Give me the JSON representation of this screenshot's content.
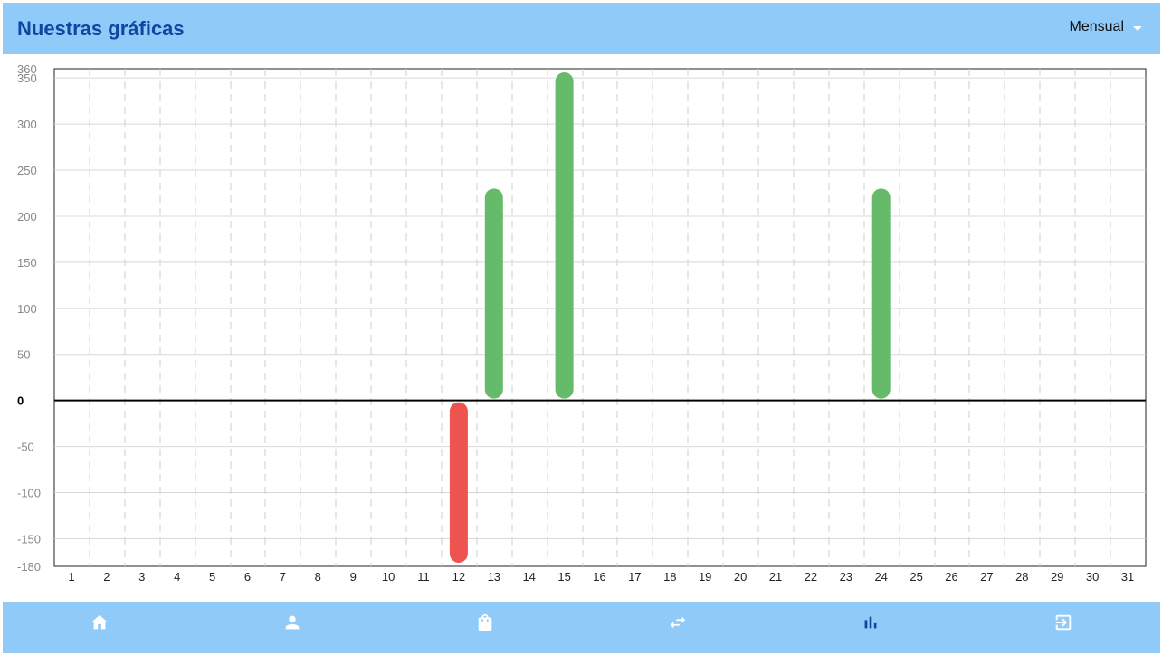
{
  "header": {
    "title": "Nuestras gráficas",
    "period_selector": "Mensual"
  },
  "colors": {
    "header_bg": "#90caf9",
    "title": "#0d47a1",
    "positive": "#66bb6a",
    "negative": "#ef5350",
    "nav_icon": "#ffffff",
    "nav_icon_active": "#0d47a1"
  },
  "nav": {
    "items": [
      {
        "icon": "home-icon",
        "active": false
      },
      {
        "icon": "person-icon",
        "active": false
      },
      {
        "icon": "shopping-bag-icon",
        "active": false
      },
      {
        "icon": "swap-horiz-icon",
        "active": false
      },
      {
        "icon": "bar-chart-icon",
        "active": true
      },
      {
        "icon": "logout-icon",
        "active": false
      }
    ]
  },
  "chart_data": {
    "type": "bar",
    "categories": [
      "1",
      "2",
      "3",
      "4",
      "5",
      "6",
      "7",
      "8",
      "9",
      "10",
      "11",
      "12",
      "13",
      "14",
      "15",
      "16",
      "17",
      "18",
      "19",
      "20",
      "21",
      "22",
      "23",
      "24",
      "25",
      "26",
      "27",
      "28",
      "29",
      "30",
      "31"
    ],
    "values": [
      0,
      0,
      0,
      0,
      0,
      0,
      0,
      0,
      0,
      0,
      0,
      -178,
      232,
      0,
      358,
      0,
      0,
      0,
      0,
      0,
      0,
      0,
      0,
      232,
      0,
      0,
      0,
      0,
      0,
      0,
      0
    ],
    "ylim": [
      -180,
      360
    ],
    "yticks": [
      -180,
      -150,
      -100,
      -50,
      0,
      50,
      100,
      150,
      200,
      250,
      300,
      350,
      360
    ],
    "grid": true,
    "legend": "none"
  }
}
